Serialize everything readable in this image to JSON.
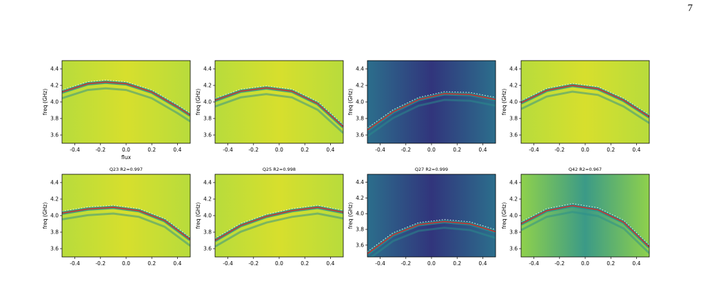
{
  "page_number": "7",
  "caption_fragment": "",
  "colors": {
    "heatmap_high": "#e6e419",
    "heatmap_mid": "#7fd34e",
    "heatmap_teal": "#2a8d8b",
    "heatmap_low": "#44075c",
    "fit_line": "#d62728",
    "measured_points": "#ffffff"
  },
  "chart_data": [
    {
      "type": "heatmap",
      "title": "",
      "xlabel": "flux",
      "ylabel": "freq (GHz)",
      "xticks": [
        "-0.4",
        "-0.2",
        "0.0",
        "0.2",
        "0.4"
      ],
      "yticks": [
        "3.6",
        "3.8",
        "4.0",
        "4.2",
        "4.4"
      ],
      "xlim": [
        -0.5,
        0.5
      ],
      "ylim": [
        3.5,
        4.5
      ],
      "background": "bright",
      "fit": {
        "flux": [
          -0.5,
          -0.3,
          -0.16,
          0.0,
          0.2,
          0.4,
          0.5
        ],
        "freq": [
          4.12,
          4.22,
          4.24,
          4.22,
          4.12,
          3.94,
          3.84
        ]
      }
    },
    {
      "type": "heatmap",
      "title": "",
      "xlabel": "",
      "ylabel": "freq (GHz)",
      "xticks": [
        "-0.4",
        "-0.2",
        "0.0",
        "0.2",
        "0.4"
      ],
      "yticks": [
        "3.6",
        "3.8",
        "4.0",
        "4.2",
        "4.4"
      ],
      "xlim": [
        -0.5,
        0.5
      ],
      "ylim": [
        3.5,
        4.5
      ],
      "background": "bright",
      "fit": {
        "flux": [
          -0.5,
          -0.3,
          -0.1,
          0.1,
          0.3,
          0.5
        ],
        "freq": [
          4.02,
          4.13,
          4.17,
          4.13,
          3.98,
          3.7
        ]
      }
    },
    {
      "type": "heatmap",
      "title": "",
      "xlabel": "",
      "ylabel": "freq (GHz)",
      "xticks": [
        "-0.4",
        "-0.2",
        "0.0",
        "0.2",
        "0.4"
      ],
      "yticks": [
        "3.6",
        "3.8",
        "4.0",
        "4.2",
        "4.4"
      ],
      "xlim": [
        -0.5,
        0.5
      ],
      "ylim": [
        3.5,
        4.5
      ],
      "background": "dark",
      "fit": {
        "flux": [
          -0.5,
          -0.3,
          -0.1,
          0.1,
          0.3,
          0.5
        ],
        "freq": [
          3.66,
          3.88,
          4.03,
          4.1,
          4.09,
          4.03
        ]
      }
    },
    {
      "type": "heatmap",
      "title": "",
      "xlabel": "",
      "ylabel": "freq (GHz)",
      "xticks": [
        "-0.4",
        "-0.2",
        "0.0",
        "0.2",
        "0.4"
      ],
      "yticks": [
        "3.6",
        "3.8",
        "4.0",
        "4.2",
        "4.4"
      ],
      "xlim": [
        -0.5,
        0.5
      ],
      "ylim": [
        3.5,
        4.5
      ],
      "background": "bright",
      "fit": {
        "flux": [
          -0.5,
          -0.3,
          -0.1,
          0.1,
          0.3,
          0.5
        ],
        "freq": [
          3.99,
          4.14,
          4.2,
          4.16,
          4.02,
          3.82
        ]
      }
    },
    {
      "type": "heatmap",
      "title": "Q23 R2=0.997",
      "xlabel": "",
      "ylabel": "freq (GHz)",
      "xticks": [
        "-0.4",
        "-0.2",
        "0.0",
        "0.2",
        "0.4"
      ],
      "yticks": [
        "3.6",
        "3.8",
        "4.0",
        "4.2",
        "4.4"
      ],
      "xlim": [
        -0.5,
        0.5
      ],
      "ylim": [
        3.5,
        4.5
      ],
      "background": "bright",
      "fit": {
        "flux": [
          -0.5,
          -0.3,
          -0.1,
          0.1,
          0.3,
          0.5
        ],
        "freq": [
          4.03,
          4.08,
          4.1,
          4.06,
          3.94,
          3.71
        ]
      }
    },
    {
      "type": "heatmap",
      "title": "Q25 R2=0.998",
      "xlabel": "",
      "ylabel": "freq (GHz)",
      "xticks": [
        "-0.4",
        "-0.2",
        "0.0",
        "0.2",
        "0.4"
      ],
      "yticks": [
        "3.6",
        "3.8",
        "4.0",
        "4.2",
        "4.4"
      ],
      "xlim": [
        -0.5,
        0.5
      ],
      "ylim": [
        3.5,
        4.5
      ],
      "background": "bright",
      "fit": {
        "flux": [
          -0.5,
          -0.3,
          -0.1,
          0.1,
          0.3,
          0.5
        ],
        "freq": [
          3.7,
          3.88,
          3.99,
          4.06,
          4.1,
          4.04
        ]
      }
    },
    {
      "type": "heatmap",
      "title": "Q27 R2=0.999",
      "xlabel": "",
      "ylabel": "freq (GHz)",
      "xticks": [
        "-0.4",
        "-0.2",
        "0.0",
        "0.2",
        "0.4"
      ],
      "yticks": [
        "3.6",
        "3.8",
        "4.0",
        "4.2",
        "4.4"
      ],
      "xlim": [
        -0.5,
        0.5
      ],
      "ylim": [
        3.45,
        4.5
      ],
      "background": "dark",
      "fit": {
        "flux": [
          -0.5,
          -0.3,
          -0.1,
          0.1,
          0.3,
          0.5
        ],
        "freq": [
          3.49,
          3.73,
          3.86,
          3.9,
          3.87,
          3.77
        ]
      }
    },
    {
      "type": "heatmap",
      "title": "Q42 R2=0.967",
      "xlabel": "",
      "ylabel": "freq (GHz)",
      "xticks": [
        "-0.4",
        "-0.2",
        "0.0",
        "0.2",
        "0.4"
      ],
      "yticks": [
        "3.6",
        "3.8",
        "4.0",
        "4.2",
        "4.4"
      ],
      "xlim": [
        -0.5,
        0.5
      ],
      "ylim": [
        3.5,
        4.5
      ],
      "background": "mixed",
      "fit": {
        "flux": [
          -0.5,
          -0.3,
          -0.1,
          0.1,
          0.3,
          0.5
        ],
        "freq": [
          3.9,
          4.06,
          4.12,
          4.07,
          3.92,
          3.62
        ]
      }
    }
  ]
}
